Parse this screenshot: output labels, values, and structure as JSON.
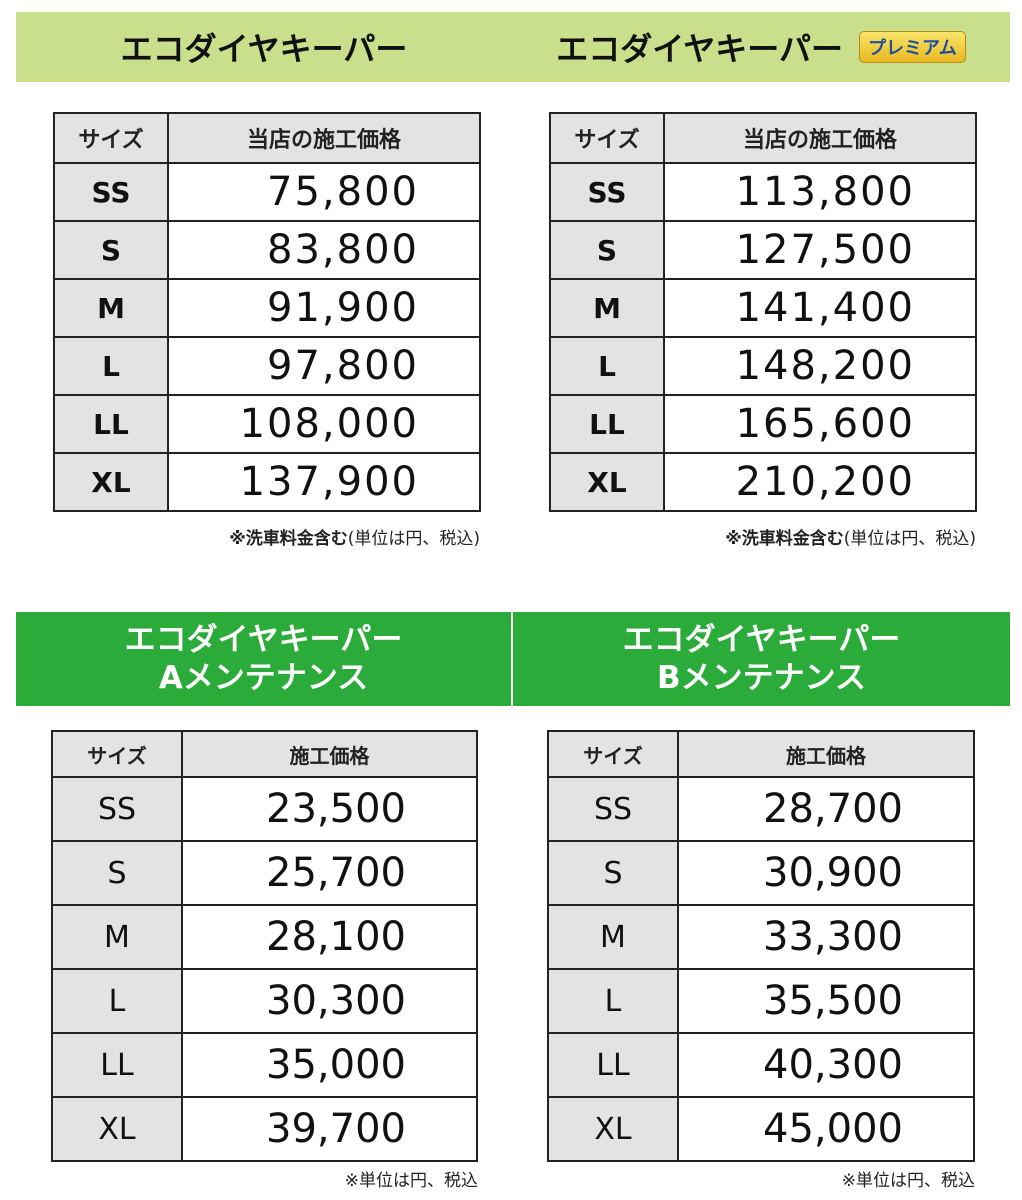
{
  "top_left": {
    "title": "エコダイヤキーパー",
    "header": [
      "サイズ",
      "当店の施工価格"
    ],
    "rows": [
      [
        "SS",
        "75,800"
      ],
      [
        "S",
        "83,800"
      ],
      [
        "M",
        "91,900"
      ],
      [
        "L",
        "97,800"
      ],
      [
        "LL",
        "108,000"
      ],
      [
        "XL",
        "137,900"
      ]
    ],
    "note_bold": "※洗車料金含む",
    "note": "(単位は円、税込)"
  },
  "top_right": {
    "title": "エコダイヤキーパー",
    "badge": "プレミアム",
    "header": [
      "サイズ",
      "当店の施工価格"
    ],
    "rows": [
      [
        "SS",
        "113,800"
      ],
      [
        "S",
        "127,500"
      ],
      [
        "M",
        "141,400"
      ],
      [
        "L",
        "148,200"
      ],
      [
        "LL",
        "165,600"
      ],
      [
        "XL",
        "210,200"
      ]
    ],
    "note_bold": "※洗車料金含む",
    "note": "(単位は円、税込)"
  },
  "bottom_left": {
    "title1": "エコダイヤキーパー",
    "title2": "Aメンテナンス",
    "header": [
      "サイズ",
      "施工価格"
    ],
    "rows": [
      [
        "SS",
        "23,500"
      ],
      [
        "S",
        "25,700"
      ],
      [
        "M",
        "28,100"
      ],
      [
        "L",
        "30,300"
      ],
      [
        "LL",
        "35,000"
      ],
      [
        "XL",
        "39,700"
      ]
    ],
    "note": "※単位は円、税込"
  },
  "bottom_right": {
    "title1": "エコダイヤキーパー",
    "title2": "Bメンテナンス",
    "header": [
      "サイズ",
      "施工価格"
    ],
    "rows": [
      [
        "SS",
        "28,700"
      ],
      [
        "S",
        "30,900"
      ],
      [
        "M",
        "33,300"
      ],
      [
        "L",
        "35,500"
      ],
      [
        "LL",
        "40,300"
      ],
      [
        "XL",
        "45,000"
      ]
    ],
    "note": "※単位は円、税込"
  },
  "colors": {
    "light_green": "#c9df8b",
    "green": "#2aab3a"
  }
}
